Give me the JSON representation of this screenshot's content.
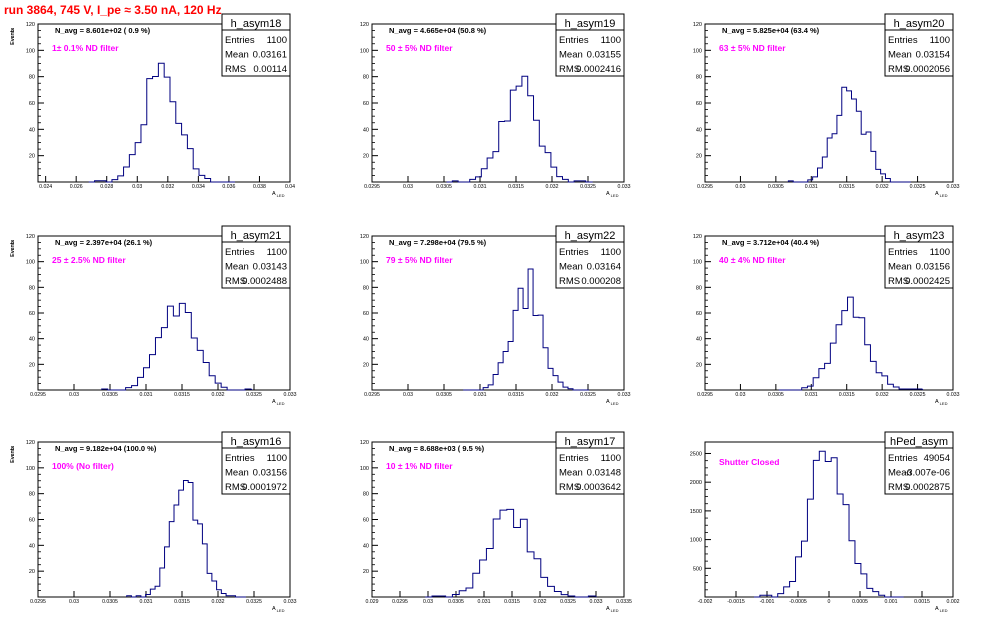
{
  "header": {
    "title": "run 3864,   745 V, I_pe ≈ 3.50 nA, 120 Hz",
    "title_color": "#ff0000"
  },
  "colors": {
    "histogram_line": "#000080",
    "annotation": "#ff00ff",
    "axes": "#000000"
  },
  "chart_data": [
    {
      "type": "bar",
      "name": "h_asym18",
      "xlabel": "A_LED",
      "ylabel": "Events",
      "xlim": [
        0.0235,
        0.04
      ],
      "ylim": [
        0,
        120
      ],
      "xticks": [
        "0.024",
        "0.026",
        "0.028",
        "0.03",
        "0.032",
        "0.034",
        "0.036",
        "0.038",
        "0.04"
      ],
      "xtick_values": [
        0.024,
        0.026,
        0.028,
        0.03,
        0.032,
        0.034,
        0.036,
        0.038,
        0.04
      ],
      "yticks": [
        "20",
        "40",
        "60",
        "80",
        "100",
        "120"
      ],
      "ytick_values": [
        20,
        40,
        60,
        80,
        100,
        120
      ],
      "stats": {
        "entries": "1100",
        "mean": "0.03161",
        "rms": "0.00114"
      },
      "n_avg_label": "N_avg = 8.601e+02 ( 0.9 %)",
      "filter_label": "1± 0.1% ND filter",
      "mean": 0.03161,
      "rms": 0.00114,
      "peak": 83
    },
    {
      "type": "bar",
      "name": "h_asym19",
      "xlabel": "A_LED",
      "ylabel": "Events",
      "xlim": [
        0.0295,
        0.033
      ],
      "ylim": [
        0,
        120
      ],
      "xticks": [
        "0.0295",
        "0.03",
        "0.0305",
        "0.031",
        "0.0315",
        "0.032",
        "0.0325",
        "0.033"
      ],
      "xtick_values": [
        0.0295,
        0.03,
        0.0305,
        0.031,
        0.0315,
        0.032,
        0.0325,
        0.033
      ],
      "yticks": [
        "20",
        "40",
        "60",
        "80",
        "100",
        "120"
      ],
      "ytick_values": [
        20,
        40,
        60,
        80,
        100,
        120
      ],
      "stats": {
        "entries": "1100",
        "mean": "0.03155",
        "rms": "0.0002416"
      },
      "n_avg_label": "N_avg = 4.665e+04 (50.8 %)",
      "filter_label": "50 ± 5% ND filter",
      "mean": 0.03155,
      "rms": 0.0002416,
      "peak": 72
    },
    {
      "type": "bar",
      "name": "h_asym20",
      "xlabel": "A_LED",
      "ylabel": "Events",
      "xlim": [
        0.0295,
        0.033
      ],
      "ylim": [
        0,
        120
      ],
      "xticks": [
        "0.0295",
        "0.03",
        "0.0305",
        "0.031",
        "0.0315",
        "0.032",
        "0.0325",
        "0.033"
      ],
      "xtick_values": [
        0.0295,
        0.03,
        0.0305,
        0.031,
        0.0315,
        0.032,
        0.0325,
        0.033
      ],
      "yticks": [
        "20",
        "40",
        "60",
        "80",
        "100",
        "120"
      ],
      "ytick_values": [
        20,
        40,
        60,
        80,
        100,
        120
      ],
      "stats": {
        "entries": "1100",
        "mean": "0.03154",
        "rms": "0.0002056"
      },
      "n_avg_label": "N_avg = 5.825e+04 (63.4 %)",
      "filter_label": "63 ± 5% ND filter",
      "mean": 0.03154,
      "rms": 0.0002056,
      "peak": 74
    },
    {
      "type": "bar",
      "name": "h_asym21",
      "xlabel": "A_LED",
      "ylabel": "Events",
      "xlim": [
        0.0295,
        0.033
      ],
      "ylim": [
        0,
        120
      ],
      "xticks": [
        "0.0295",
        "0.03",
        "0.0305",
        "0.031",
        "0.0315",
        "0.032",
        "0.0325",
        "0.033"
      ],
      "xtick_values": [
        0.0295,
        0.03,
        0.0305,
        0.031,
        0.0315,
        0.032,
        0.0325,
        0.033
      ],
      "yticks": [
        "20",
        "40",
        "60",
        "80",
        "100",
        "120"
      ],
      "ytick_values": [
        20,
        40,
        60,
        80,
        100,
        120
      ],
      "stats": {
        "entries": "1100",
        "mean": "0.03143",
        "rms": "0.0002488"
      },
      "n_avg_label": "N_avg = 2.397e+04 (26.1 %)",
      "filter_label": "25 ± 2.5% ND filter",
      "mean": 0.03143,
      "rms": 0.0002488,
      "peak": 67
    },
    {
      "type": "bar",
      "name": "h_asym22",
      "xlabel": "A_LED",
      "ylabel": "Events",
      "xlim": [
        0.0295,
        0.033
      ],
      "ylim": [
        0,
        120
      ],
      "xticks": [
        "0.0295",
        "0.03",
        "0.0305",
        "0.031",
        "0.0315",
        "0.032",
        "0.0325",
        "0.033"
      ],
      "xtick_values": [
        0.0295,
        0.03,
        0.0305,
        0.031,
        0.0315,
        0.032,
        0.0325,
        0.033
      ],
      "yticks": [
        "20",
        "40",
        "60",
        "80",
        "100",
        "120"
      ],
      "ytick_values": [
        20,
        40,
        60,
        80,
        100,
        120
      ],
      "stats": {
        "entries": "1100",
        "mean": "0.03164",
        "rms": "0.000208"
      },
      "n_avg_label": "N_avg = 7.298e+04 (79.5 %)",
      "filter_label": "79 ± 5% ND filter",
      "mean": 0.03164,
      "rms": 0.000208,
      "peak": 81
    },
    {
      "type": "bar",
      "name": "h_asym23",
      "xlabel": "A_LED",
      "ylabel": "Events",
      "xlim": [
        0.0295,
        0.033
      ],
      "ylim": [
        0,
        120
      ],
      "xticks": [
        "0.0295",
        "0.03",
        "0.0305",
        "0.031",
        "0.0315",
        "0.032",
        "0.0325",
        "0.033"
      ],
      "xtick_values": [
        0.0295,
        0.03,
        0.0305,
        0.031,
        0.0315,
        0.032,
        0.0325,
        0.033
      ],
      "yticks": [
        "20",
        "40",
        "60",
        "80",
        "100",
        "120"
      ],
      "ytick_values": [
        20,
        40,
        60,
        80,
        100,
        120
      ],
      "stats": {
        "entries": "1100",
        "mean": "0.03156",
        "rms": "0.0002425"
      },
      "n_avg_label": "N_avg = 3.712e+04 (40.4 %)",
      "filter_label": "40 ± 4% ND filter",
      "mean": 0.03156,
      "rms": 0.0002425,
      "peak": 63
    },
    {
      "type": "bar",
      "name": "h_asym16",
      "xlabel": "A_LED",
      "ylabel": "Events",
      "xlim": [
        0.0295,
        0.033
      ],
      "ylim": [
        0,
        120
      ],
      "xticks": [
        "0.0295",
        "0.03",
        "0.0305",
        "0.031",
        "0.0315",
        "0.032",
        "0.0325",
        "0.033"
      ],
      "xtick_values": [
        0.0295,
        0.03,
        0.0305,
        0.031,
        0.0315,
        0.032,
        0.0325,
        0.033
      ],
      "yticks": [
        "20",
        "40",
        "60",
        "80",
        "100",
        "120"
      ],
      "ytick_values": [
        20,
        40,
        60,
        80,
        100,
        120
      ],
      "stats": {
        "entries": "1100",
        "mean": "0.03156",
        "rms": "0.0001972"
      },
      "n_avg_label": "N_avg = 9.182e+04 (100.0 %)",
      "filter_label": "100% (No filter)",
      "mean": 0.03156,
      "rms": 0.0001972,
      "peak": 84
    },
    {
      "type": "bar",
      "name": "h_asym17",
      "xlabel": "A_LED",
      "ylabel": "Events",
      "xlim": [
        0.029,
        0.0335
      ],
      "ylim": [
        0,
        120
      ],
      "xticks": [
        "0.029",
        "0.0295",
        "0.03",
        "0.0305",
        "0.031",
        "0.0315",
        "0.032",
        "0.0325",
        "0.033",
        "0.0335"
      ],
      "xtick_values": [
        0.029,
        0.0295,
        0.03,
        0.0305,
        0.031,
        0.0315,
        0.032,
        0.0325,
        0.033,
        0.0335
      ],
      "yticks": [
        "20",
        "40",
        "60",
        "80",
        "100",
        "120"
      ],
      "ytick_values": [
        20,
        40,
        60,
        80,
        100,
        120
      ],
      "stats": {
        "entries": "1100",
        "mean": "0.03148",
        "rms": "0.0003642"
      },
      "n_avg_label": "N_avg = 8.688e+03 ( 9.5 %)",
      "filter_label": "10 ± 1% ND filter",
      "mean": 0.03148,
      "rms": 0.0003642,
      "peak": 68
    },
    {
      "type": "bar",
      "name": "hPed_asym",
      "xlabel": "A_LED",
      "ylabel": "Events",
      "xlim": [
        -0.002,
        0.002
      ],
      "ylim": [
        0,
        2700
      ],
      "xticks": [
        "-0.002",
        "-0.0015",
        "-0.001",
        "-0.0005",
        "0",
        "0.0005",
        "0.001",
        "0.0015",
        "0.002"
      ],
      "xtick_values": [
        -0.002,
        -0.0015,
        -0.001,
        -0.0005,
        0,
        0.0005,
        0.001,
        0.0015,
        0.002
      ],
      "yticks": [
        "500",
        "1000",
        "1500",
        "2000",
        "2500"
      ],
      "ytick_values": [
        500,
        1000,
        1500,
        2000,
        2500
      ],
      "stats": {
        "entries": "49054",
        "mean": "-3.007e-06",
        "rms": "0.0002875"
      },
      "n_avg_label": "",
      "filter_label": "Shutter Closed",
      "mean": -3.007e-06,
      "rms": 0.0002875,
      "peak": 2560
    }
  ]
}
